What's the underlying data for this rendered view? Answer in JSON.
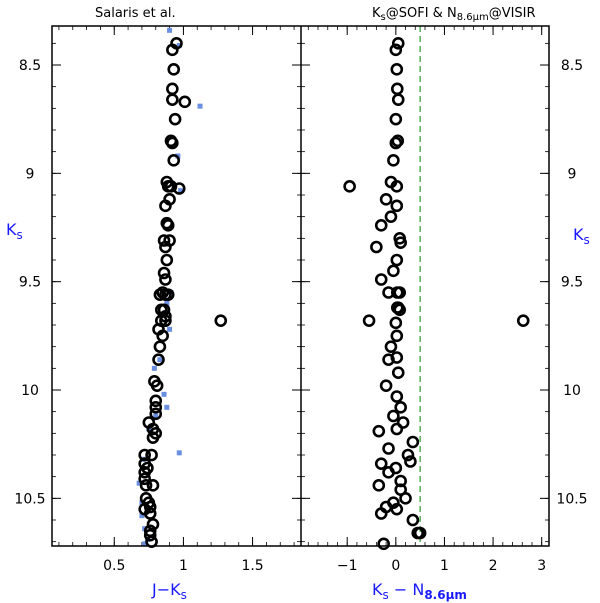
{
  "chart_data": [
    {
      "type": "scatter",
      "title": "Salaris et al.",
      "xlabel": "J−K",
      "xlabel_sub": "s",
      "ylabel": "K",
      "ylabel_sub": "s",
      "xlim": [
        0.05,
        1.85
      ],
      "ylim": [
        10.72,
        8.32
      ],
      "xticks": [
        "0.5",
        "1",
        "1.5"
      ],
      "yticks": [
        "8.5",
        "9",
        "9.5",
        "10",
        "10.5"
      ],
      "series": [
        {
          "marker": "circle",
          "points": [
            [
              0.95,
              8.4
            ],
            [
              0.92,
              8.43
            ],
            [
              0.93,
              8.52
            ],
            [
              0.92,
              8.61
            ],
            [
              1.01,
              8.67
            ],
            [
              0.92,
              8.66
            ],
            [
              0.94,
              8.75
            ],
            [
              0.91,
              8.85
            ],
            [
              0.92,
              8.86
            ],
            [
              0.93,
              8.94
            ],
            [
              0.88,
              9.04
            ],
            [
              0.89,
              9.06
            ],
            [
              0.91,
              9.06
            ],
            [
              0.97,
              9.07
            ],
            [
              0.9,
              9.12
            ],
            [
              0.87,
              9.15
            ],
            [
              0.88,
              9.23
            ],
            [
              0.89,
              9.24
            ],
            [
              0.86,
              9.31
            ],
            [
              0.9,
              9.31
            ],
            [
              0.87,
              9.34
            ],
            [
              0.88,
              9.4
            ],
            [
              0.86,
              9.46
            ],
            [
              0.87,
              9.49
            ],
            [
              0.85,
              9.55
            ],
            [
              0.83,
              9.56
            ],
            [
              0.87,
              9.56
            ],
            [
              0.89,
              9.56
            ],
            [
              0.84,
              9.63
            ],
            [
              0.86,
              9.63
            ],
            [
              0.87,
              9.66
            ],
            [
              0.84,
              9.68
            ],
            [
              0.87,
              9.68
            ],
            [
              0.82,
              9.72
            ],
            [
              1.27,
              9.68
            ],
            [
              0.85,
              9.75
            ],
            [
              0.83,
              9.8
            ],
            [
              0.82,
              9.86
            ],
            [
              0.79,
              9.96
            ],
            [
              0.81,
              9.98
            ],
            [
              0.8,
              10.05
            ],
            [
              0.8,
              10.08
            ],
            [
              0.8,
              10.11
            ],
            [
              0.75,
              10.15
            ],
            [
              0.78,
              10.18
            ],
            [
              0.8,
              10.2
            ],
            [
              0.78,
              10.22
            ],
            [
              0.72,
              10.3
            ],
            [
              0.77,
              10.3
            ],
            [
              0.72,
              10.34
            ],
            [
              0.74,
              10.36
            ],
            [
              0.72,
              10.38
            ],
            [
              0.72,
              10.41
            ],
            [
              0.73,
              10.44
            ],
            [
              0.78,
              10.44
            ],
            [
              0.73,
              10.5
            ],
            [
              0.75,
              10.52
            ],
            [
              0.76,
              10.54
            ],
            [
              0.72,
              10.55
            ],
            [
              0.76,
              10.57
            ],
            [
              0.78,
              10.62
            ],
            [
              0.76,
              10.65
            ],
            [
              0.76,
              10.67
            ],
            [
              0.77,
              10.7
            ]
          ]
        },
        {
          "marker": "square",
          "points": [
            [
              0.9,
              8.34
            ],
            [
              0.97,
              8.41
            ],
            [
              1.12,
              8.69
            ],
            [
              0.96,
              8.92
            ],
            [
              0.98,
              9.08
            ],
            [
              0.91,
              9.55
            ],
            [
              0.88,
              9.6
            ],
            [
              0.9,
              9.72
            ],
            [
              0.83,
              9.86
            ],
            [
              0.79,
              9.9
            ],
            [
              0.86,
              10.02
            ],
            [
              0.88,
              10.08
            ],
            [
              0.8,
              10.12
            ],
            [
              0.75,
              10.18
            ],
            [
              0.97,
              10.29
            ],
            [
              0.71,
              10.32
            ],
            [
              0.68,
              10.43
            ],
            [
              0.7,
              10.52
            ],
            [
              0.7,
              10.58
            ],
            [
              0.72,
              10.64
            ],
            [
              0.74,
              10.69
            ],
            [
              0.72,
              10.71
            ]
          ]
        }
      ]
    },
    {
      "type": "scatter",
      "title_parts": [
        "K",
        "s",
        "@SOFI  &  N",
        "8.6µm",
        "@VISIR"
      ],
      "xlabel": "K",
      "xlabel_sub": "s",
      "xlabel_mid": "  −  N",
      "xlabel_sub2": "8.6µm",
      "ylabel": "K",
      "ylabel_sub": "s",
      "xlim": [
        -1.95,
        3.15
      ],
      "ylim": [
        10.72,
        8.32
      ],
      "xticks": [
        "−1",
        "0",
        "1",
        "2",
        "3"
      ],
      "yticks": [
        "8.5",
        "9",
        "9.5",
        "10",
        "10.5"
      ],
      "reference_line": {
        "x": 0.5,
        "style": "dashed",
        "color": "#2a9a2a"
      },
      "series": [
        {
          "marker": "circle",
          "points": [
            [
              0.05,
              8.4
            ],
            [
              0.0,
              8.43
            ],
            [
              0.02,
              8.52
            ],
            [
              0.03,
              8.61
            ],
            [
              0.05,
              8.66
            ],
            [
              0.0,
              8.75
            ],
            [
              0.04,
              8.85
            ],
            [
              0.0,
              8.86
            ],
            [
              -0.05,
              8.94
            ],
            [
              -0.95,
              9.06
            ],
            [
              -0.1,
              9.04
            ],
            [
              0.02,
              9.06
            ],
            [
              -0.2,
              9.12
            ],
            [
              0.02,
              9.15
            ],
            [
              -0.1,
              9.2
            ],
            [
              -0.3,
              9.24
            ],
            [
              0.08,
              9.3
            ],
            [
              0.1,
              9.32
            ],
            [
              -0.4,
              9.34
            ],
            [
              0.02,
              9.4
            ],
            [
              -0.05,
              9.45
            ],
            [
              -0.3,
              9.49
            ],
            [
              -0.15,
              9.55
            ],
            [
              0.03,
              9.55
            ],
            [
              0.08,
              9.55
            ],
            [
              0.05,
              9.62
            ],
            [
              0.08,
              9.63
            ],
            [
              0.03,
              9.62
            ],
            [
              -0.55,
              9.68
            ],
            [
              0.0,
              9.69
            ],
            [
              2.62,
              9.68
            ],
            [
              0.02,
              9.75
            ],
            [
              -0.1,
              9.8
            ],
            [
              -0.15,
              9.86
            ],
            [
              0.02,
              9.85
            ],
            [
              0.05,
              9.92
            ],
            [
              -0.2,
              9.98
            ],
            [
              0.02,
              10.03
            ],
            [
              0.1,
              10.08
            ],
            [
              -0.05,
              10.12
            ],
            [
              0.15,
              10.15
            ],
            [
              -0.35,
              10.19
            ],
            [
              0.02,
              10.18
            ],
            [
              0.35,
              10.24
            ],
            [
              -0.15,
              10.27
            ],
            [
              0.25,
              10.3
            ],
            [
              0.3,
              10.33
            ],
            [
              -0.3,
              10.34
            ],
            [
              0.0,
              10.36
            ],
            [
              -0.15,
              10.38
            ],
            [
              0.1,
              10.42
            ],
            [
              -0.35,
              10.44
            ],
            [
              0.1,
              10.46
            ],
            [
              0.2,
              10.5
            ],
            [
              -0.05,
              10.52
            ],
            [
              -0.2,
              10.54
            ],
            [
              0.02,
              10.55
            ],
            [
              -0.3,
              10.57
            ],
            [
              0.35,
              10.6
            ],
            [
              0.5,
              10.66
            ],
            [
              0.45,
              10.66
            ],
            [
              -0.25,
              10.71
            ]
          ]
        }
      ]
    }
  ]
}
